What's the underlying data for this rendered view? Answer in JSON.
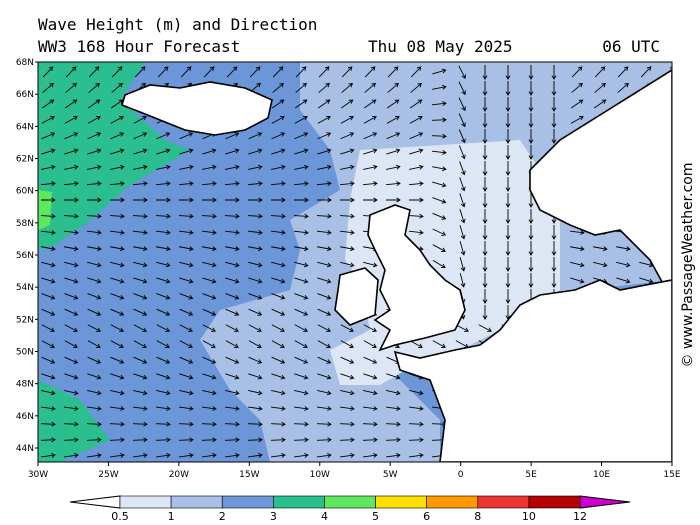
{
  "header": {
    "title": "Wave Height (m) and Direction",
    "subtitle": "WW3 168 Hour Forecast",
    "date": "Thu 08 May 2025",
    "time": "06 UTC"
  },
  "map": {
    "lat_labels": [
      "68N",
      "66N",
      "64N",
      "62N",
      "60N",
      "58N",
      "56N",
      "54N",
      "52N",
      "50N",
      "48N",
      "46N",
      "44N"
    ],
    "lon_labels": [
      "30W",
      "25W",
      "20W",
      "15W",
      "10W",
      "5W",
      "0",
      "5E",
      "10E",
      "15E"
    ]
  },
  "colorbar": {
    "labels": [
      "0.5",
      "1",
      "2",
      "3",
      "4",
      "5",
      "6",
      "8",
      "10",
      "12"
    ]
  },
  "watermark": "© www.PassageWeather.com"
}
